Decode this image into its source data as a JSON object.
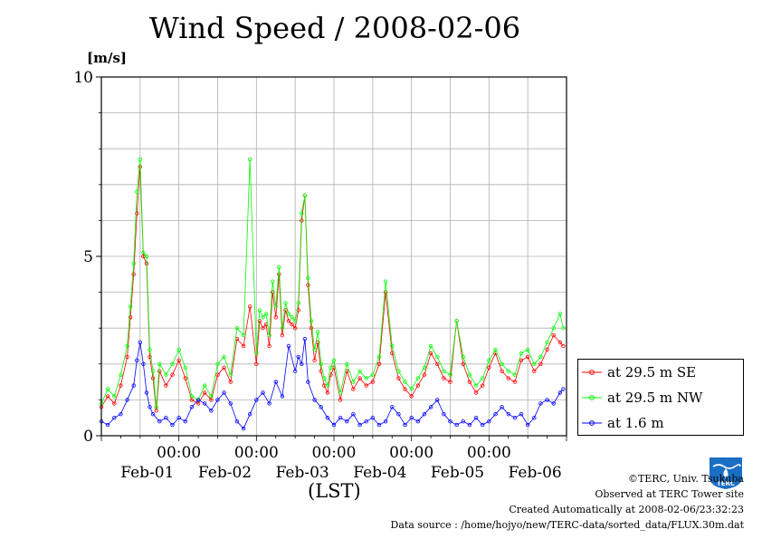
{
  "header": {
    "title": "Wind Speed / 2008-02-06",
    "unit": "[m/s]"
  },
  "chart_data": {
    "type": "line",
    "title": "Wind Speed / 2008-02-06",
    "ylabel": "[m/s]",
    "xlabel": "(LST)",
    "ylim": [
      0,
      10
    ],
    "xlim_hours": [
      0,
      144
    ],
    "y_ticks": [
      "0",
      "5",
      "10"
    ],
    "x_time_ticks": [
      "00:00",
      "00:00",
      "00:00",
      "00:00",
      "00:00"
    ],
    "x_date_labels": [
      "Feb-01",
      "Feb-02",
      "Feb-03",
      "Feb-04",
      "Feb-05",
      "Feb-06"
    ],
    "grid": true,
    "legend_position": "right",
    "series": [
      {
        "name": "at 29.5 m SE",
        "color": "#ff0000",
        "x": [
          0,
          2,
          4,
          6,
          8,
          9,
          10,
          11,
          12,
          13,
          14,
          15,
          16,
          17,
          18,
          20,
          22,
          24,
          26,
          28,
          30,
          32,
          34,
          36,
          38,
          40,
          42,
          44,
          46,
          48,
          49,
          50,
          51,
          52,
          53,
          54,
          55,
          56,
          57,
          58,
          59,
          60,
          61,
          62,
          63,
          64,
          65,
          66,
          67,
          68,
          69,
          70,
          71,
          72,
          74,
          76,
          78,
          80,
          82,
          84,
          86,
          88,
          90,
          92,
          94,
          96,
          98,
          100,
          102,
          104,
          106,
          108,
          110,
          112,
          114,
          116,
          118,
          120,
          122,
          124,
          126,
          128,
          130,
          132,
          134,
          136,
          138,
          140,
          142,
          143
        ],
        "values": [
          0.8,
          1.1,
          0.9,
          1.4,
          2.2,
          3.3,
          4.5,
          6.2,
          7.5,
          5.0,
          4.8,
          2.2,
          1.6,
          0.7,
          1.8,
          1.4,
          1.7,
          2.1,
          1.6,
          1.0,
          0.9,
          1.2,
          1.0,
          1.7,
          1.9,
          1.5,
          2.7,
          2.5,
          3.6,
          2.0,
          3.2,
          3.0,
          3.1,
          2.5,
          4.0,
          3.3,
          4.5,
          2.8,
          3.5,
          3.2,
          3.1,
          3.0,
          3.5,
          6.0,
          6.7,
          4.2,
          3.0,
          2.1,
          2.6,
          1.8,
          1.4,
          1.2,
          1.7,
          1.9,
          1.0,
          1.8,
          1.3,
          1.6,
          1.4,
          1.5,
          2.0,
          4.0,
          2.3,
          1.6,
          1.3,
          1.1,
          1.4,
          1.7,
          2.3,
          2.0,
          1.6,
          1.5,
          3.2,
          2.0,
          1.5,
          1.2,
          1.4,
          1.9,
          2.3,
          1.8,
          1.6,
          1.5,
          2.1,
          2.2,
          1.8,
          2.0,
          2.4,
          2.8,
          2.6,
          2.5
        ]
      },
      {
        "name": "at 29.5 m NW",
        "color": "#00ff00",
        "x": [
          0,
          2,
          4,
          6,
          8,
          9,
          10,
          11,
          12,
          13,
          14,
          15,
          16,
          17,
          18,
          20,
          22,
          24,
          26,
          28,
          30,
          32,
          34,
          36,
          38,
          40,
          42,
          44,
          46,
          48,
          49,
          50,
          51,
          52,
          53,
          54,
          55,
          56,
          57,
          58,
          59,
          60,
          61,
          62,
          63,
          64,
          65,
          66,
          67,
          68,
          69,
          70,
          71,
          72,
          74,
          76,
          78,
          80,
          82,
          84,
          86,
          88,
          90,
          92,
          94,
          96,
          98,
          100,
          102,
          104,
          106,
          108,
          110,
          112,
          114,
          116,
          118,
          120,
          122,
          124,
          126,
          128,
          130,
          132,
          134,
          136,
          138,
          140,
          142,
          143
        ],
        "values": [
          0.9,
          1.3,
          1.1,
          1.7,
          2.5,
          3.6,
          4.8,
          6.8,
          7.7,
          5.1,
          5.0,
          2.4,
          1.8,
          0.8,
          2.0,
          1.7,
          2.0,
          2.4,
          1.9,
          1.1,
          1.0,
          1.4,
          1.1,
          2.0,
          2.2,
          1.7,
          3.0,
          2.8,
          7.7,
          2.3,
          3.5,
          3.3,
          3.4,
          2.8,
          4.3,
          3.6,
          4.7,
          3.0,
          3.7,
          3.4,
          3.3,
          3.2,
          3.7,
          6.2,
          6.7,
          4.4,
          3.2,
          2.4,
          2.9,
          2.0,
          1.6,
          1.4,
          1.9,
          2.1,
          1.2,
          2.0,
          1.5,
          1.8,
          1.6,
          1.7,
          2.2,
          4.3,
          2.5,
          1.8,
          1.5,
          1.3,
          1.6,
          1.9,
          2.5,
          2.2,
          1.8,
          1.7,
          3.2,
          2.2,
          1.7,
          1.4,
          1.6,
          2.1,
          2.4,
          2.0,
          1.8,
          1.7,
          2.3,
          2.4,
          2.0,
          2.2,
          2.6,
          3.0,
          3.4,
          3.0
        ]
      },
      {
        "name": "at 1.6 m",
        "color": "#0000ff",
        "x": [
          0,
          2,
          4,
          6,
          8,
          10,
          11,
          12,
          13,
          14,
          15,
          16,
          18,
          20,
          22,
          24,
          26,
          28,
          30,
          32,
          34,
          36,
          38,
          40,
          42,
          44,
          46,
          48,
          50,
          52,
          54,
          56,
          58,
          60,
          61,
          62,
          63,
          64,
          66,
          68,
          70,
          72,
          74,
          76,
          78,
          80,
          82,
          84,
          86,
          88,
          90,
          92,
          94,
          96,
          98,
          100,
          102,
          104,
          106,
          108,
          110,
          112,
          114,
          116,
          118,
          120,
          122,
          124,
          126,
          128,
          130,
          132,
          134,
          136,
          138,
          140,
          142,
          143
        ],
        "values": [
          0.4,
          0.3,
          0.5,
          0.6,
          1.0,
          1.4,
          2.1,
          2.6,
          2.0,
          1.2,
          0.8,
          0.6,
          0.4,
          0.5,
          0.3,
          0.5,
          0.4,
          0.8,
          1.0,
          0.9,
          0.7,
          1.0,
          1.2,
          0.9,
          0.4,
          0.2,
          0.6,
          1.0,
          1.2,
          0.9,
          1.5,
          1.1,
          2.5,
          1.8,
          2.2,
          2.0,
          2.7,
          1.5,
          1.0,
          0.8,
          0.5,
          0.3,
          0.5,
          0.4,
          0.6,
          0.3,
          0.4,
          0.5,
          0.3,
          0.4,
          0.8,
          0.6,
          0.3,
          0.5,
          0.4,
          0.6,
          0.8,
          1.0,
          0.6,
          0.4,
          0.3,
          0.4,
          0.3,
          0.5,
          0.3,
          0.4,
          0.6,
          0.8,
          0.6,
          0.5,
          0.6,
          0.3,
          0.5,
          0.9,
          1.0,
          0.9,
          1.2,
          1.3
        ]
      }
    ]
  },
  "legend": {
    "items": [
      {
        "label": "at 29.5 m SE",
        "color": "#ff0000"
      },
      {
        "label": "at 29.5 m NW",
        "color": "#00ff00"
      },
      {
        "label": "at 1.6 m",
        "color": "#0000ff"
      }
    ]
  },
  "footer": {
    "copyright": "©TERC, Univ. Tsukuba",
    "observed": "Observed at TERC Tower site",
    "created": "Created Automatically at 2008-02-06/23:32:23",
    "source": "Data source : /home/hojyo/new/TERC-data/sorted_data/FLUX.30m.dat"
  },
  "logo": {
    "text": "TERC",
    "color": "#1a6fc4"
  }
}
